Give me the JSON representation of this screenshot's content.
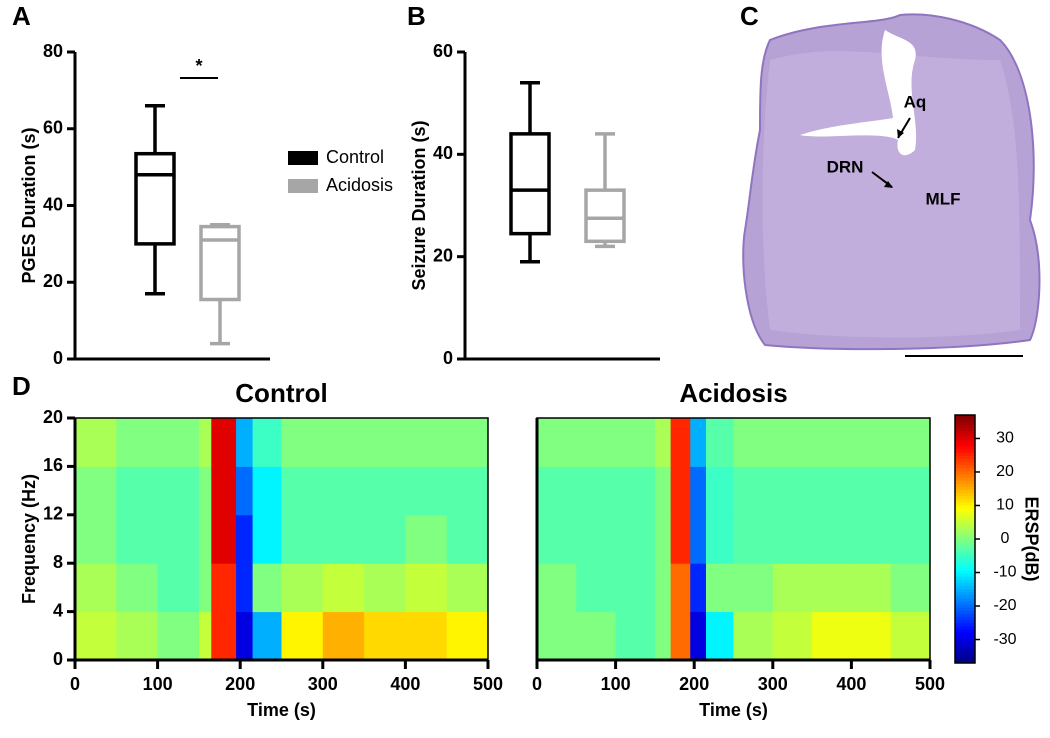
{
  "chart_data": [
    {
      "type": "box",
      "panel": "A",
      "ylabel": "PGES Duration (s)",
      "ylim": [
        0,
        80
      ],
      "yticks": [
        0,
        20,
        40,
        60,
        80
      ],
      "legend": true,
      "series": [
        {
          "name": "Control",
          "color": "#000000",
          "whisker_low": 17,
          "q1": 30,
          "median": 48,
          "q3": 53.5,
          "whisker_high": 66
        },
        {
          "name": "Acidosis",
          "color": "#a6a6a6",
          "whisker_low": 4,
          "q1": 15.5,
          "median": 31,
          "q3": 34.5,
          "whisker_high": 35
        }
      ],
      "annotations": [
        {
          "text": "*"
        }
      ]
    },
    {
      "type": "box",
      "panel": "B",
      "ylabel": "Seizure Duration (s)",
      "ylim": [
        0,
        60
      ],
      "yticks": [
        0,
        20,
        40,
        60
      ],
      "legend": false,
      "series": [
        {
          "name": "Control",
          "color": "#000000",
          "whisker_low": 19,
          "q1": 24.5,
          "median": 33,
          "q3": 44,
          "whisker_high": 54
        },
        {
          "name": "Acidosis",
          "color": "#a6a6a6",
          "whisker_low": 22,
          "q1": 23,
          "median": 27.5,
          "q3": 33,
          "whisker_high": 44
        }
      ]
    },
    {
      "type": "image",
      "panel": "C",
      "labels": [
        "Aq",
        "DRN",
        "MLF"
      ]
    },
    {
      "type": "heatmap",
      "panel": "D",
      "title": "Control",
      "title_color": "#000000",
      "xlabel": "Time (s)",
      "ylabel": "Frequency (Hz)",
      "xlim": [
        0,
        500
      ],
      "xticks": [
        0,
        100,
        200,
        300,
        400,
        500
      ],
      "ylim": [
        0,
        20
      ],
      "yticks": [
        0,
        4,
        8,
        12,
        16,
        20
      ],
      "colormap": "jet",
      "zlim": [
        -37,
        37
      ],
      "x_edges": [
        0,
        50,
        100,
        150,
        165,
        195,
        215,
        250,
        300,
        350,
        400,
        450,
        500
      ],
      "y_edges": [
        0,
        4,
        8,
        12,
        16,
        20
      ],
      "z": [
        [
          5,
          3,
          0,
          5,
          25,
          -30,
          -15,
          10,
          15,
          12,
          12,
          10
        ],
        [
          3,
          0,
          -3,
          0,
          25,
          -25,
          0,
          3,
          5,
          3,
          5,
          3
        ],
        [
          0,
          -3,
          -3,
          0,
          30,
          -25,
          -10,
          -3,
          -3,
          -3,
          0,
          -3
        ],
        [
          0,
          -3,
          -3,
          0,
          30,
          -20,
          -10,
          -3,
          -3,
          -3,
          -3,
          -3
        ],
        [
          3,
          0,
          0,
          3,
          30,
          -15,
          -5,
          0,
          0,
          0,
          0,
          0
        ]
      ]
    },
    {
      "type": "heatmap",
      "title": "Acidosis",
      "title_color": "#a6a6a6",
      "xlabel": "Time (s)",
      "xlim": [
        0,
        500
      ],
      "xticks": [
        0,
        100,
        200,
        300,
        400,
        500
      ],
      "ylim": [
        0,
        20
      ],
      "colormap": "jet",
      "zlim": [
        -37,
        37
      ],
      "zticks": [
        -30,
        -20,
        -10,
        0,
        10,
        20,
        30
      ],
      "colorbar_label": "ERSP(dB)",
      "x_edges": [
        0,
        50,
        100,
        150,
        170,
        195,
        215,
        250,
        300,
        350,
        400,
        450,
        500
      ],
      "y_edges": [
        0,
        4,
        8,
        12,
        16,
        20
      ],
      "z": [
        [
          0,
          0,
          -3,
          0,
          20,
          -30,
          -10,
          3,
          5,
          8,
          8,
          5
        ],
        [
          0,
          -3,
          -3,
          0,
          20,
          -25,
          0,
          0,
          3,
          3,
          3,
          0
        ],
        [
          -3,
          -3,
          -3,
          0,
          25,
          -20,
          -5,
          -3,
          -3,
          -3,
          -3,
          -3
        ],
        [
          -3,
          -3,
          -3,
          0,
          25,
          -20,
          -5,
          -3,
          -3,
          -3,
          -3,
          -3
        ],
        [
          0,
          0,
          0,
          3,
          25,
          -15,
          -3,
          0,
          0,
          0,
          0,
          0
        ]
      ]
    }
  ]
}
